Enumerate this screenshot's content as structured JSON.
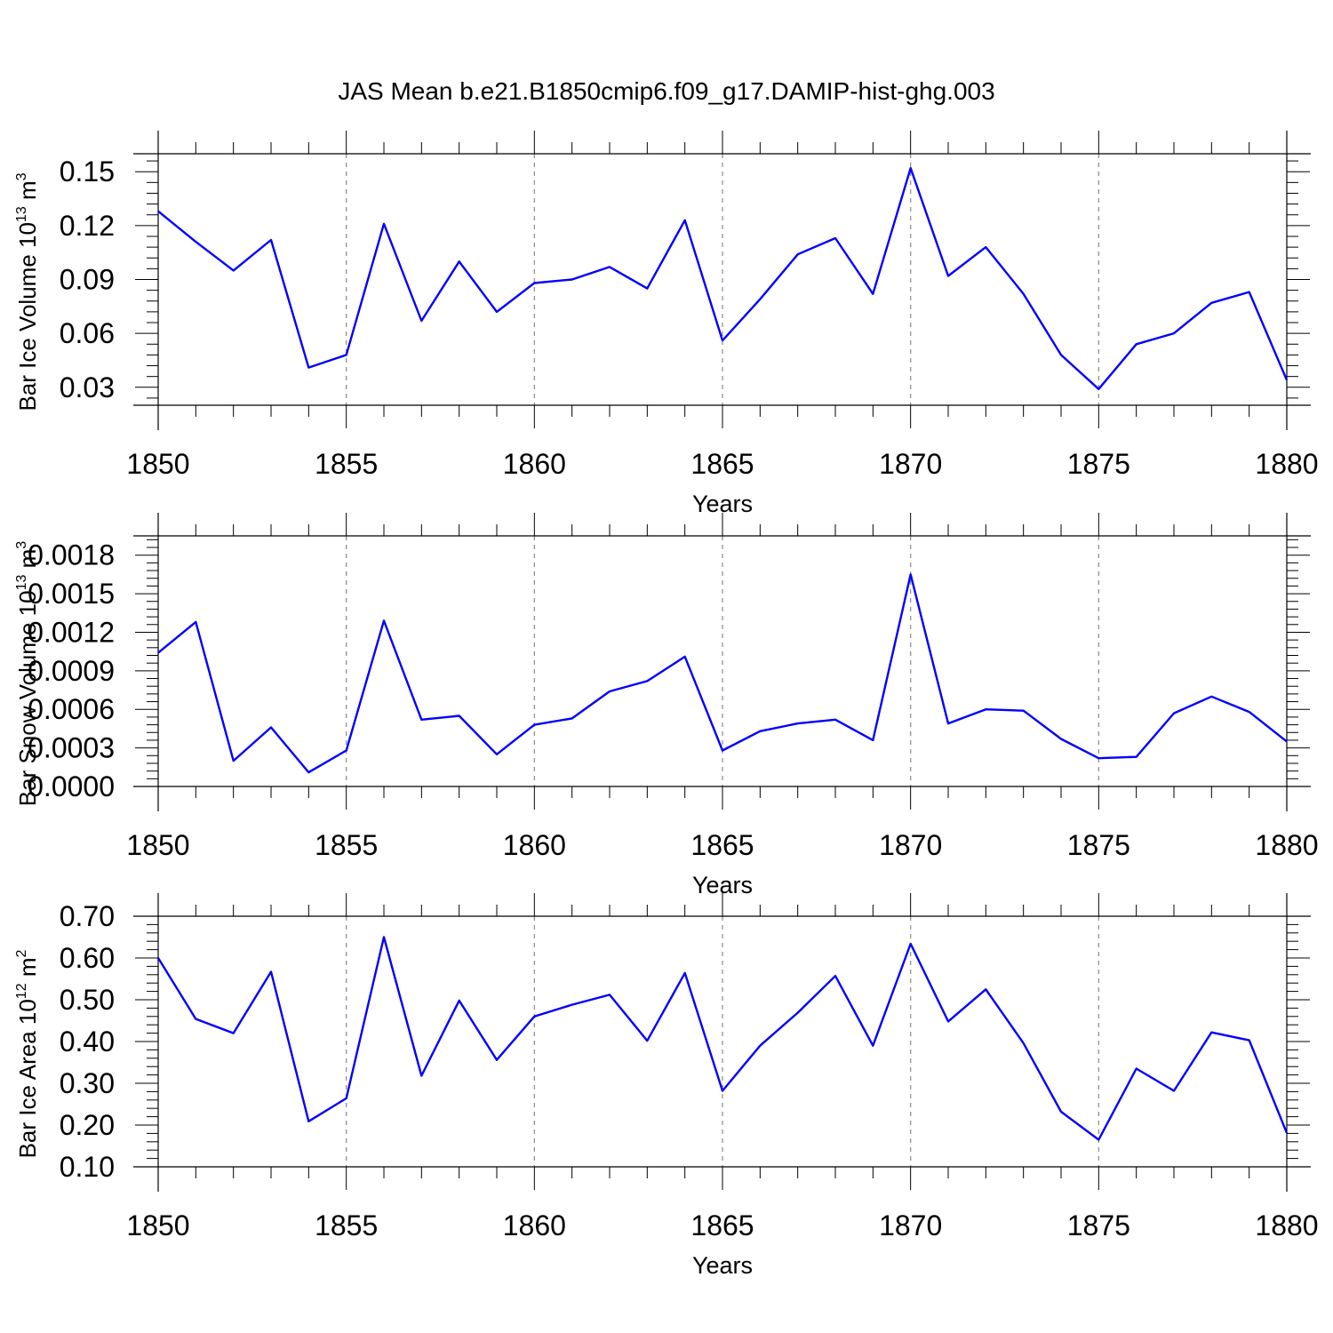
{
  "figure_title": "JAS Mean b.e21.B1850cmip6.f09_g17.DAMIP-hist-ghg.003",
  "colors": {
    "line": "#0000ff",
    "axis": "#000000",
    "grid": "#888888"
  },
  "chart_data": [
    {
      "type": "line",
      "ylabel": {
        "text": "Bar Ice Volume 10",
        "exp": "13",
        "unit": " m",
        "unit_exp": "3"
      },
      "xlabel": "Years",
      "xlim": [
        1850,
        1880
      ],
      "ylim": [
        0.02,
        0.16
      ],
      "yticks": [
        0.03,
        0.06,
        0.09,
        0.12,
        0.15
      ],
      "ytick_labels": [
        "0.03",
        "0.06",
        "0.09",
        "0.12",
        "0.15"
      ],
      "xticks": [
        1850,
        1855,
        1860,
        1865,
        1870,
        1875,
        1880
      ],
      "xtick_labels": [
        "1850",
        "1855",
        "1860",
        "1865",
        "1870",
        "1875",
        "1880"
      ],
      "grid_x": [
        1855,
        1860,
        1865,
        1870,
        1875
      ],
      "x": [
        1850,
        1851,
        1852,
        1853,
        1854,
        1855,
        1856,
        1857,
        1858,
        1859,
        1860,
        1861,
        1862,
        1863,
        1864,
        1865,
        1866,
        1867,
        1868,
        1869,
        1870,
        1871,
        1872,
        1873,
        1874,
        1875,
        1876,
        1877,
        1878,
        1879,
        1880
      ],
      "values": [
        0.128,
        0.111,
        0.095,
        0.112,
        0.041,
        0.048,
        0.121,
        0.067,
        0.1,
        0.072,
        0.088,
        0.09,
        0.097,
        0.085,
        0.123,
        0.056,
        0.079,
        0.104,
        0.113,
        0.082,
        0.152,
        0.092,
        0.108,
        0.082,
        0.048,
        0.029,
        0.054,
        0.06,
        0.077,
        0.083,
        0.034
      ]
    },
    {
      "type": "line",
      "ylabel": {
        "text": "Bar Snow Volume 10",
        "exp": "13",
        "unit": " m",
        "unit_exp": "3"
      },
      "xlabel": "Years",
      "xlim": [
        1850,
        1880
      ],
      "ylim": [
        0.0,
        0.00195
      ],
      "yticks": [
        0.0,
        0.0003,
        0.0006,
        0.0009,
        0.0012,
        0.0015,
        0.0018
      ],
      "ytick_labels": [
        "0.0000",
        "0.0003",
        "0.0006",
        "0.0009",
        "0.0012",
        "0.0015",
        "0.0018"
      ],
      "xticks": [
        1850,
        1855,
        1860,
        1865,
        1870,
        1875,
        1880
      ],
      "xtick_labels": [
        "1850",
        "1855",
        "1860",
        "1865",
        "1870",
        "1875",
        "1880"
      ],
      "grid_x": [
        1855,
        1860,
        1865,
        1870,
        1875
      ],
      "x": [
        1850,
        1851,
        1852,
        1853,
        1854,
        1855,
        1856,
        1857,
        1858,
        1859,
        1860,
        1861,
        1862,
        1863,
        1864,
        1865,
        1866,
        1867,
        1868,
        1869,
        1870,
        1871,
        1872,
        1873,
        1874,
        1875,
        1876,
        1877,
        1878,
        1879,
        1880
      ],
      "values": [
        0.00104,
        0.00128,
        0.0002,
        0.00046,
        0.00011,
        0.00028,
        0.00129,
        0.00052,
        0.00055,
        0.00025,
        0.00048,
        0.00053,
        0.00074,
        0.00082,
        0.00101,
        0.00028,
        0.00043,
        0.00049,
        0.00052,
        0.00036,
        0.00165,
        0.00049,
        0.0006,
        0.00059,
        0.00037,
        0.00022,
        0.00023,
        0.00057,
        0.0007,
        0.00058,
        0.00035
      ]
    },
    {
      "type": "line",
      "ylabel": {
        "text": "Bar Ice Area 10",
        "exp": "12",
        "unit": " m",
        "unit_exp": "2"
      },
      "xlabel": "Years",
      "xlim": [
        1850,
        1880
      ],
      "ylim": [
        0.1,
        0.7
      ],
      "yticks": [
        0.1,
        0.2,
        0.3,
        0.4,
        0.5,
        0.6,
        0.7
      ],
      "ytick_labels": [
        "0.10",
        "0.20",
        "0.30",
        "0.40",
        "0.50",
        "0.60",
        "0.70"
      ],
      "xticks": [
        1850,
        1855,
        1860,
        1865,
        1870,
        1875,
        1880
      ],
      "xtick_labels": [
        "1850",
        "1855",
        "1860",
        "1865",
        "1870",
        "1875",
        "1880"
      ],
      "grid_x": [
        1855,
        1860,
        1865,
        1870,
        1875
      ],
      "x": [
        1850,
        1851,
        1852,
        1853,
        1854,
        1855,
        1856,
        1857,
        1858,
        1859,
        1860,
        1861,
        1862,
        1863,
        1864,
        1865,
        1866,
        1867,
        1868,
        1869,
        1870,
        1871,
        1872,
        1873,
        1874,
        1875,
        1876,
        1877,
        1878,
        1879,
        1880
      ],
      "values": [
        0.6,
        0.454,
        0.42,
        0.567,
        0.209,
        0.264,
        0.65,
        0.318,
        0.498,
        0.356,
        0.46,
        0.488,
        0.512,
        0.402,
        0.564,
        0.282,
        0.39,
        0.469,
        0.557,
        0.39,
        0.634,
        0.448,
        0.525,
        0.396,
        0.232,
        0.165,
        0.335,
        0.282,
        0.422,
        0.403,
        0.181
      ]
    }
  ]
}
